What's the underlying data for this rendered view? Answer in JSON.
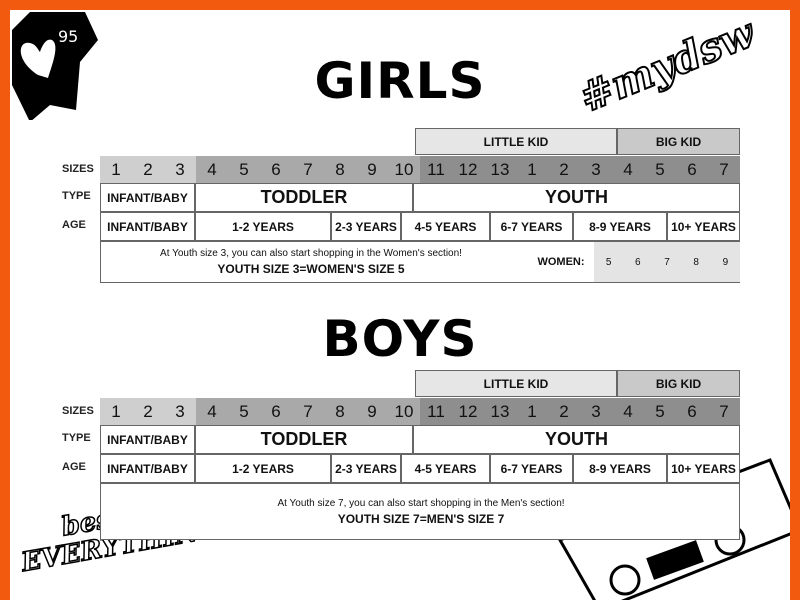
{
  "decor": {
    "likes_badge": "95",
    "hashtag": "#mydsw",
    "sticker": "best of EVERYTHING"
  },
  "colors": {
    "frame": "#f25a0f",
    "infant": "#cfcfcf",
    "toddler": "#a9a9a9",
    "youth": "#8e8e8e",
    "little_kid": "#e6e6e6",
    "big_kid": "#c9c9c9",
    "women": "#e4e4e4"
  },
  "row_labels": {
    "sizes": "SIZES",
    "type": "TYPE",
    "age": "AGE"
  },
  "header": {
    "little_kid": "LITTLE KID",
    "big_kid": "BIG KID"
  },
  "sizes": [
    "1",
    "2",
    "3",
    "4",
    "5",
    "6",
    "7",
    "8",
    "9",
    "10",
    "11",
    "12",
    "13",
    "1",
    "2",
    "3",
    "4",
    "5",
    "6",
    "7"
  ],
  "types": [
    "INFANT/BABY",
    "TODDLER",
    "YOUTH"
  ],
  "ages": [
    "INFANT/BABY",
    "1-2 YEARS",
    "2-3 YEARS",
    "4-5 YEARS",
    "6-7 YEARS",
    "8-9 YEARS",
    "10+ YEARS"
  ],
  "girls": {
    "title": "GIRLS",
    "note": "At Youth size 3, you can also start shopping in the Women's section!",
    "equivalence": "YOUTH SIZE 3=WOMEN'S SIZE 5",
    "women_label": "WOMEN:",
    "women_sizes": [
      "5",
      "6",
      "7",
      "8",
      "9"
    ]
  },
  "boys": {
    "title": "BOYS",
    "note": "At Youth size 7, you can also start shopping in the Men's section!",
    "equivalence": "YOUTH SIZE 7=MEN'S SIZE 7"
  }
}
